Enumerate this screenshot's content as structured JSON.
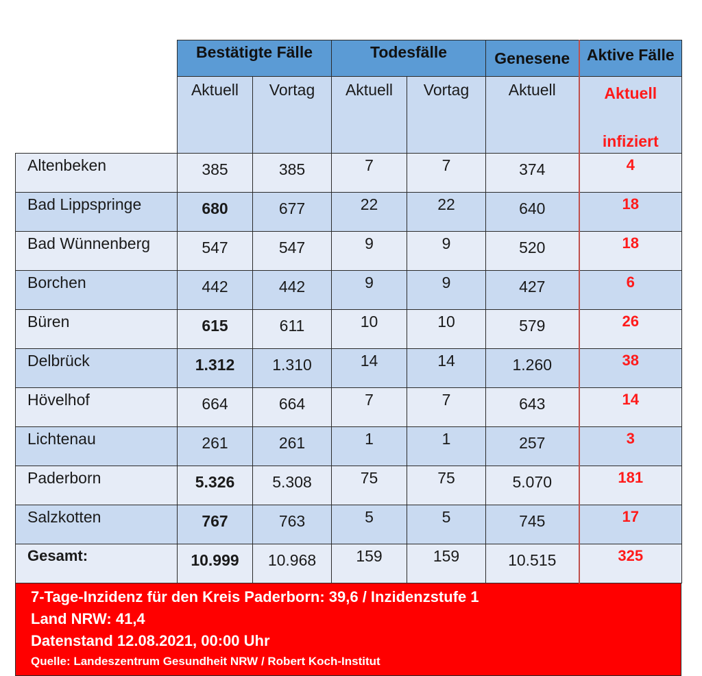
{
  "header": {
    "groups": {
      "confirmed": "Bestätigte Fälle",
      "deaths": "Todesfälle",
      "recovered": "Genesene",
      "active": "Aktive Fälle"
    },
    "sub": {
      "confirmed_current": "Aktuell",
      "confirmed_prev": "Vortag",
      "deaths_current": "Aktuell",
      "deaths_prev": "Vortag",
      "recovered_current": "Aktuell",
      "active_line1": "Aktuell",
      "active_line2": "infiziert"
    }
  },
  "rows": [
    {
      "name": "Altenbeken",
      "confirmed": "385",
      "confirmed_prev": "385",
      "deaths": "7",
      "deaths_prev": "7",
      "recovered": "374",
      "active": "4",
      "bold": false
    },
    {
      "name": "Bad Lippspringe",
      "confirmed": "680",
      "confirmed_prev": "677",
      "deaths": "22",
      "deaths_prev": "22",
      "recovered": "640",
      "active": "18",
      "bold": true
    },
    {
      "name": "Bad Wünnenberg",
      "confirmed": "547",
      "confirmed_prev": "547",
      "deaths": "9",
      "deaths_prev": "9",
      "recovered": "520",
      "active": "18",
      "bold": false
    },
    {
      "name": "Borchen",
      "confirmed": "442",
      "confirmed_prev": "442",
      "deaths": "9",
      "deaths_prev": "9",
      "recovered": "427",
      "active": "6",
      "bold": false
    },
    {
      "name": "Büren",
      "confirmed": "615",
      "confirmed_prev": "611",
      "deaths": "10",
      "deaths_prev": "10",
      "recovered": "579",
      "active": "26",
      "bold": true
    },
    {
      "name": "Delbrück",
      "confirmed": "1.312",
      "confirmed_prev": "1.310",
      "deaths": "14",
      "deaths_prev": "14",
      "recovered": "1.260",
      "active": "38",
      "bold": true
    },
    {
      "name": "Hövelhof",
      "confirmed": "664",
      "confirmed_prev": "664",
      "deaths": "7",
      "deaths_prev": "7",
      "recovered": "643",
      "active": "14",
      "bold": false
    },
    {
      "name": "Lichtenau",
      "confirmed": "261",
      "confirmed_prev": "261",
      "deaths": "1",
      "deaths_prev": "1",
      "recovered": "257",
      "active": "3",
      "bold": false
    },
    {
      "name": "Paderborn",
      "confirmed": "5.326",
      "confirmed_prev": "5.308",
      "deaths": "75",
      "deaths_prev": "75",
      "recovered": "5.070",
      "active": "181",
      "bold": true
    },
    {
      "name": "Salzkotten",
      "confirmed": "767",
      "confirmed_prev": "763",
      "deaths": "5",
      "deaths_prev": "5",
      "recovered": "745",
      "active": "17",
      "bold": true
    }
  ],
  "total": {
    "name": "Gesamt:",
    "confirmed": "10.999",
    "confirmed_prev": "10.968",
    "deaths": "159",
    "deaths_prev": "159",
    "recovered": "10.515",
    "active": "325"
  },
  "info": {
    "line1": "7-Tage-Inzidenz für den Kreis Paderborn: 39,6 / Inzidenzstufe 1",
    "line2": "Land NRW: 41,4",
    "line3": "Datenstand 12.08.2021, 00:00 Uhr",
    "line4": "Quelle: Landeszentrum Gesundheit NRW / Robert Koch-Institut"
  },
  "colors": {
    "header_blue": "#5b9bd5",
    "row_light": "#e6ecf7",
    "row_dark": "#c9daf1",
    "active_red": "#ff1a1a",
    "info_bg": "#ff0000"
  }
}
